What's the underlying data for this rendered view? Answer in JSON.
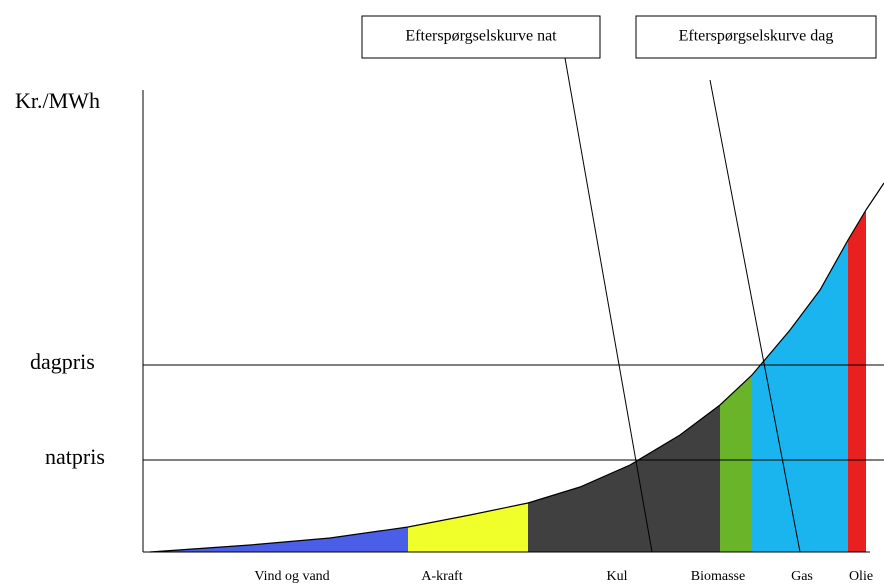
{
  "axis_label": "Kr./MWh",
  "price_levels": [
    "dagpris",
    "natpris"
  ],
  "demand_curves": [
    "Efterspørgselskurve nat",
    "Efterspørgselskurve dag"
  ],
  "sources": [
    "Vind og vand",
    "A-kraft",
    "Kul",
    "Biomasse",
    "Gas",
    "Olie"
  ]
}
